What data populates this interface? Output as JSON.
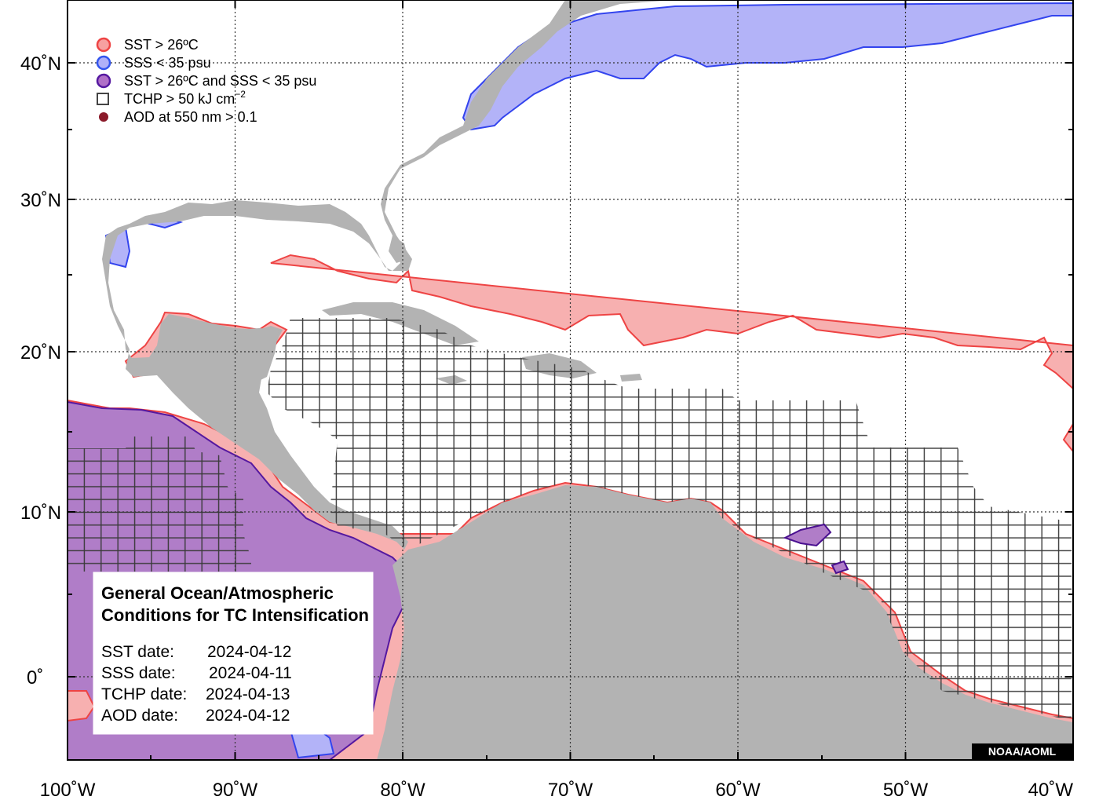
{
  "map": {
    "lon_range": [
      "100˚W",
      "40˚W"
    ],
    "lat_range": [
      "5˚S",
      "44˚N"
    ]
  },
  "legend": {
    "items": [
      {
        "label": "SST > 26ºC",
        "icon": "circle",
        "fill": "#f7a0a0",
        "stroke": "#ee4444"
      },
      {
        "label": "SSS < 35 psu",
        "icon": "circle",
        "fill": "#b0b0f8",
        "stroke": "#3355ee"
      },
      {
        "label": "SST > 26ºC and SSS < 35 psu",
        "icon": "circle",
        "fill": "#b070c8",
        "stroke": "#5518a0"
      },
      {
        "label": "TCHP > 50 kJ cm",
        "label_sup": "−2",
        "icon": "square",
        "fill": "none",
        "stroke": "#444444"
      },
      {
        "label": "AOD at 550 nm > 0.1",
        "icon": "dot",
        "fill": "#8b1a2a",
        "stroke": "#8b1a2a"
      }
    ]
  },
  "info_box": {
    "title_line1": "General Ocean/Atmospheric",
    "title_line2": "Conditions for TC Intensification",
    "rows": [
      {
        "label": "SST date:",
        "value": "2024-04-12"
      },
      {
        "label": "SSS date:",
        "value": "2024-04-11"
      },
      {
        "label": "TCHP date:",
        "value": "2024-04-13"
      },
      {
        "label": "AOD date:",
        "value": "2024-04-12"
      }
    ]
  },
  "axes": {
    "x_ticks": [
      "100˚W",
      "90˚W",
      "80˚W",
      "70˚W",
      "60˚W",
      "50˚W",
      "40˚W"
    ],
    "y_ticks": [
      "40˚N",
      "30˚N",
      "20˚N",
      "10˚N",
      "0˚"
    ]
  },
  "credit": "NOAA/AOML",
  "colors": {
    "land": "#b3b3b3",
    "ocean": "#ffffff",
    "sst": "#f7b0b0",
    "sst_line": "#ee4444",
    "sss": "#b3b3f8",
    "sss_line": "#3344ee",
    "both": "#b07dc8",
    "both_line": "#4a1090",
    "tchp_grid": "#3a3a3a"
  }
}
